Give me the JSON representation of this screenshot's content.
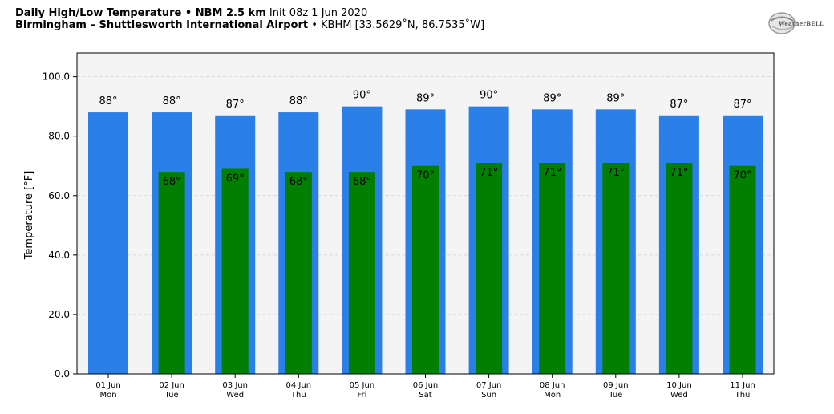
{
  "header": {
    "title_bold": "Daily High/Low Temperature • NBM 2.5 km",
    "title_rest": "Init 08z 1 Jun 2020",
    "location_bold": "Birmingham – Shuttlesworth International Airport",
    "location_rest": "• KBHM [33.5629˚N, 86.7535˚W]"
  },
  "logo": {
    "text": "WeatherBELL"
  },
  "colors": {
    "high": "#2a7fe9",
    "low": "#007f00",
    "plot_bg": "#f4f4f4",
    "grid": "#cfcfcf"
  },
  "chart_data": {
    "type": "bar",
    "title": "Daily High/Low Temperature • NBM 2.5 km",
    "xlabel": "",
    "ylabel": "Temperature [°F]",
    "ylim": [
      0,
      108
    ],
    "yticks": [
      "0.0",
      "20.0",
      "40.0",
      "60.0",
      "80.0",
      "100.0"
    ],
    "grid": true,
    "categories": [
      "01 Jun",
      "02 Jun",
      "03 Jun",
      "04 Jun",
      "05 Jun",
      "06 Jun",
      "07 Jun",
      "08 Jun",
      "09 Jun",
      "10 Jun",
      "11 Jun"
    ],
    "weekdays": [
      "Mon",
      "Tue",
      "Wed",
      "Thu",
      "Fri",
      "Sat",
      "Sun",
      "Mon",
      "Tue",
      "Wed",
      "Thu"
    ],
    "series": [
      {
        "values": [
          88,
          88,
          87,
          88,
          90,
          89,
          90,
          89,
          89,
          87,
          87
        ],
        "labels": [
          "88°",
          "88°",
          "87°",
          "88°",
          "90°",
          "89°",
          "90°",
          "89°",
          "89°",
          "87°",
          "87°"
        ]
      },
      {
        "values": [
          null,
          68,
          69,
          68,
          68,
          70,
          71,
          71,
          71,
          71,
          70
        ],
        "labels": [
          "",
          "68°",
          "69°",
          "68°",
          "68°",
          "70°",
          "71°",
          "71°",
          "71°",
          "71°",
          "70°"
        ]
      }
    ]
  }
}
